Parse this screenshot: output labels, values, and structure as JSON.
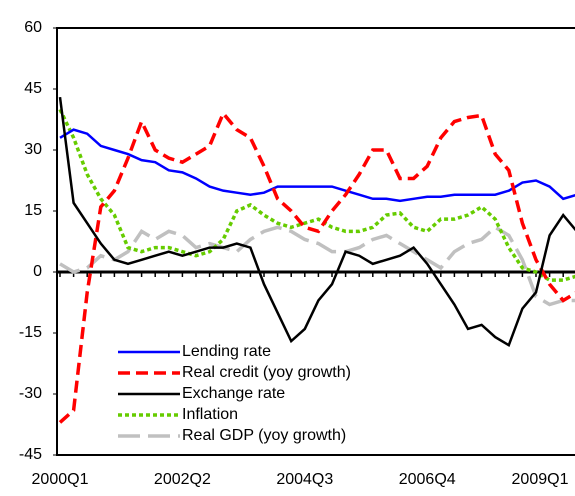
{
  "chart_data": {
    "type": "line",
    "categories": [
      "2000Q1",
      null,
      null,
      null,
      null,
      null,
      null,
      null,
      null,
      "2002Q2",
      null,
      null,
      null,
      null,
      null,
      null,
      null,
      null,
      "2004Q3",
      null,
      null,
      null,
      null,
      null,
      null,
      null,
      null,
      "2006Q4",
      null,
      null,
      null,
      null,
      null,
      null,
      null,
      null,
      "2009Q1",
      null,
      null
    ],
    "ylim": [
      -45,
      60
    ],
    "yticks": [
      -45,
      -30,
      -15,
      0,
      15,
      30,
      45,
      60
    ],
    "grid": false,
    "legend": "lower left",
    "series": [
      {
        "name": "Lending rate",
        "color": "#0000ff",
        "dash": "solid",
        "values": [
          33,
          35,
          34,
          31,
          30,
          29,
          27.5,
          27,
          25,
          24.5,
          23,
          21,
          20,
          19.5,
          19,
          19.5,
          21,
          21,
          21,
          21,
          21,
          20,
          19,
          18,
          18,
          17.5,
          18,
          18.5,
          18.5,
          19,
          19,
          19,
          19,
          20,
          22,
          22.5,
          21,
          18,
          19
        ]
      },
      {
        "name": "Real credit (yoy growth)",
        "color": "#ff0000",
        "dash": "dashed",
        "values": [
          -37,
          -34,
          -5,
          16,
          20,
          28,
          37,
          30,
          28,
          27,
          29,
          31,
          39,
          35,
          33,
          26,
          18,
          15,
          11,
          10,
          15,
          19,
          24,
          30,
          30,
          23,
          23,
          26,
          33,
          37,
          38,
          38.5,
          29,
          25,
          12,
          3,
          -3,
          -7,
          -5
        ]
      },
      {
        "name": "Exchange rate",
        "color": "#000000",
        "dash": "solid",
        "values": [
          43,
          17,
          12,
          7,
          3,
          2,
          3,
          4,
          5,
          4,
          5,
          6,
          6,
          7,
          6,
          -3,
          -10,
          -17,
          -14,
          -7,
          -3,
          5,
          4,
          2,
          3,
          4,
          6,
          2,
          -3,
          -8,
          -14,
          -13,
          -16,
          -18,
          -9,
          -5,
          9,
          14,
          10
        ]
      },
      {
        "name": "Inflation",
        "color": "#66cc00",
        "dash": "dotted",
        "values": [
          40,
          33,
          24,
          18,
          14,
          6,
          5,
          6,
          6,
          5,
          4,
          5,
          8,
          15,
          16.5,
          14,
          12,
          11,
          12,
          13,
          11,
          10,
          10,
          11,
          14,
          14.5,
          11,
          10,
          13,
          13,
          14,
          16,
          13,
          6,
          1,
          0,
          -2,
          -2,
          -1
        ]
      },
      {
        "name": "Real GDP (yoy growth)",
        "color": "#c0c0c0",
        "dash": "longdash",
        "values": [
          2,
          0,
          1,
          4,
          3,
          5,
          10,
          8,
          10,
          9,
          6,
          7,
          6,
          5,
          8,
          10,
          11,
          10,
          8,
          7,
          5,
          5,
          6,
          8,
          9,
          7,
          5,
          3,
          1,
          5,
          7,
          8,
          11,
          9,
          3,
          -6,
          -8,
          -7,
          -7
        ]
      }
    ]
  }
}
